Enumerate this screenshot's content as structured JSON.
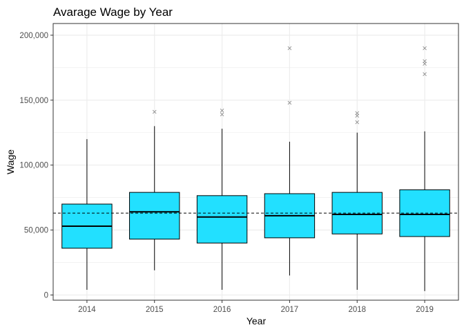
{
  "chart_data": {
    "type": "boxplot",
    "title": "Avarage Wage by Year",
    "xlabel": "Year",
    "ylabel": "Wage",
    "ylim": [
      -4000,
      209000
    ],
    "yticks": [
      0,
      50000,
      100000,
      150000,
      200000
    ],
    "ytick_labels": [
      "0",
      "50,000",
      "100,000",
      "150,000",
      "200,000"
    ],
    "categories": [
      "2014",
      "2015",
      "2016",
      "2017",
      "2018",
      "2019"
    ],
    "boxes": [
      {
        "category": "2014",
        "whisker_low": 4000,
        "q1": 36000,
        "median": 53000,
        "q3": 70000,
        "whisker_high": 120000,
        "outliers": []
      },
      {
        "category": "2015",
        "whisker_low": 19000,
        "q1": 43000,
        "median": 64000,
        "q3": 79000,
        "whisker_high": 130000,
        "outliers": [
          141000
        ]
      },
      {
        "category": "2016",
        "whisker_low": 4000,
        "q1": 40000,
        "median": 60000,
        "q3": 76500,
        "whisker_high": 128000,
        "outliers": [
          139000,
          142000
        ]
      },
      {
        "category": "2017",
        "whisker_low": 15000,
        "q1": 44000,
        "median": 61000,
        "q3": 78000,
        "whisker_high": 118000,
        "outliers": [
          148000,
          190000
        ]
      },
      {
        "category": "2018",
        "whisker_low": 4000,
        "q1": 47000,
        "median": 62000,
        "q3": 79000,
        "whisker_high": 125000,
        "outliers": [
          133000,
          138000,
          140000
        ]
      },
      {
        "category": "2019",
        "whisker_low": 3000,
        "q1": 45000,
        "median": 62000,
        "q3": 81000,
        "whisker_high": 126000,
        "outliers": [
          170000,
          178000,
          180000,
          190000
        ]
      }
    ],
    "reference_line": {
      "value": 63000,
      "style": "dashed"
    },
    "colors": {
      "box_fill": "#22e0ff",
      "box_stroke": "#000000",
      "outlier": "#8c8c8c",
      "grid": "#ebebeb",
      "panel_border": "#333333"
    },
    "grid": true,
    "legend": "none"
  }
}
